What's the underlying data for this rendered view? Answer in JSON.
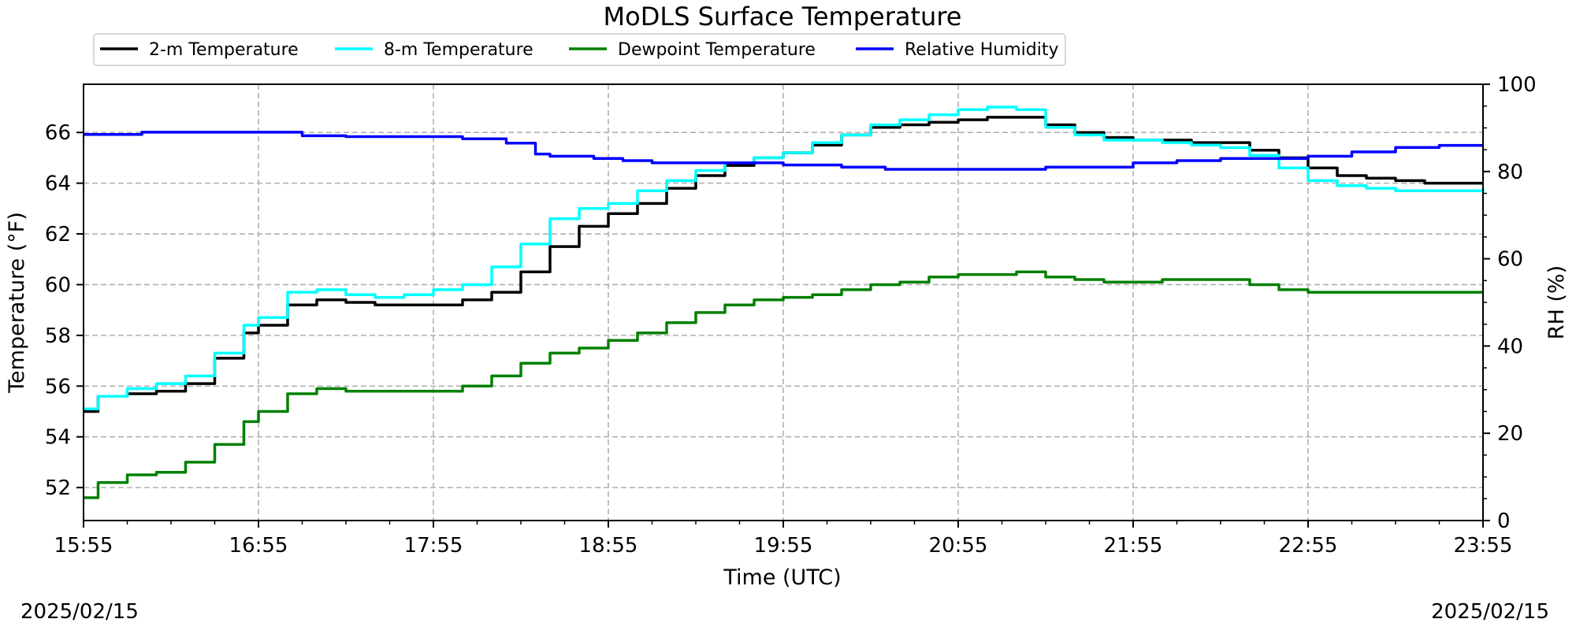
{
  "chart_data": {
    "type": "line",
    "title": "MoDLS Surface Temperature",
    "xlabel": "Time (UTC)",
    "ylabel": "Temperature ($^\\circ$F)",
    "ylabel_display": "Temperature (°F)",
    "y2label": "RH (%)",
    "xticks": [
      "15:55",
      "16:55",
      "17:55",
      "18:55",
      "19:55",
      "20:55",
      "21:55",
      "22:55",
      "23:55"
    ],
    "yticks": [
      52,
      54,
      56,
      58,
      60,
      62,
      64,
      66
    ],
    "y2ticks": [
      0,
      20,
      40,
      60,
      80,
      100
    ],
    "ylim": [
      50.7,
      67.9
    ],
    "y2lim": [
      0,
      100
    ],
    "grid": true,
    "legend_position": "top, above plot",
    "date_left": "2025/02/15",
    "date_right": "2025/02/15",
    "x_unit": "minutes since 15:55",
    "series": [
      {
        "name": "2-m Temperature",
        "axis": "left",
        "color": "#000000",
        "x": [
          0,
          5,
          15,
          25,
          35,
          45,
          55,
          60,
          70,
          80,
          90,
          100,
          110,
          120,
          130,
          140,
          150,
          160,
          170,
          180,
          190,
          200,
          210,
          220,
          230,
          240,
          250,
          260,
          270,
          280,
          290,
          300,
          310,
          320,
          330,
          340,
          350,
          360,
          370,
          380,
          390,
          400,
          410,
          420,
          430,
          440,
          450,
          460,
          480
        ],
        "values": [
          55.0,
          55.6,
          55.7,
          55.8,
          56.1,
          57.1,
          58.1,
          58.4,
          59.2,
          59.4,
          59.3,
          59.2,
          59.2,
          59.2,
          59.4,
          59.7,
          60.5,
          61.5,
          62.3,
          62.8,
          63.2,
          63.8,
          64.3,
          64.7,
          65.0,
          65.2,
          65.5,
          65.9,
          66.2,
          66.3,
          66.4,
          66.5,
          66.6,
          66.6,
          66.3,
          66.0,
          65.8,
          65.7,
          65.7,
          65.6,
          65.6,
          65.3,
          65.0,
          64.6,
          64.3,
          64.2,
          64.1,
          64.0,
          64.0
        ]
      },
      {
        "name": "8-m Temperature",
        "axis": "left",
        "color": "#00ffff",
        "x": [
          0,
          5,
          15,
          25,
          35,
          45,
          55,
          60,
          70,
          80,
          90,
          100,
          110,
          120,
          130,
          140,
          150,
          160,
          170,
          180,
          190,
          200,
          210,
          220,
          230,
          240,
          250,
          260,
          270,
          280,
          290,
          300,
          310,
          320,
          330,
          340,
          350,
          360,
          370,
          380,
          390,
          400,
          410,
          420,
          430,
          440,
          450,
          460,
          480
        ],
        "values": [
          55.1,
          55.6,
          55.9,
          56.1,
          56.4,
          57.3,
          58.4,
          58.7,
          59.7,
          59.8,
          59.6,
          59.5,
          59.6,
          59.8,
          60.0,
          60.7,
          61.6,
          62.6,
          63.0,
          63.2,
          63.7,
          64.1,
          64.5,
          64.8,
          65.0,
          65.2,
          65.6,
          65.9,
          66.3,
          66.5,
          66.7,
          66.9,
          67.0,
          66.9,
          66.2,
          65.9,
          65.7,
          65.7,
          65.6,
          65.5,
          65.4,
          65.1,
          64.6,
          64.1,
          63.9,
          63.8,
          63.7,
          63.7,
          63.8
        ]
      },
      {
        "name": "Dewpoint Temperature",
        "axis": "left",
        "color": "#008000",
        "x": [
          0,
          5,
          15,
          25,
          35,
          45,
          55,
          60,
          70,
          80,
          90,
          100,
          110,
          120,
          130,
          140,
          150,
          160,
          170,
          180,
          190,
          200,
          210,
          220,
          230,
          240,
          250,
          260,
          270,
          280,
          290,
          300,
          310,
          320,
          330,
          340,
          350,
          360,
          370,
          380,
          390,
          400,
          410,
          420,
          430,
          440,
          450,
          460,
          480
        ],
        "values": [
          51.6,
          52.2,
          52.5,
          52.6,
          53.0,
          53.7,
          54.6,
          55.0,
          55.7,
          55.9,
          55.8,
          55.8,
          55.8,
          55.8,
          56.0,
          56.4,
          56.9,
          57.3,
          57.5,
          57.8,
          58.1,
          58.5,
          58.9,
          59.2,
          59.4,
          59.5,
          59.6,
          59.8,
          60.0,
          60.1,
          60.3,
          60.4,
          60.4,
          60.5,
          60.3,
          60.2,
          60.1,
          60.1,
          60.2,
          60.2,
          60.2,
          60.0,
          59.8,
          59.7,
          59.7,
          59.7,
          59.7,
          59.7,
          59.7
        ]
      },
      {
        "name": "Relative Humidity",
        "axis": "right",
        "color": "#0000ff",
        "x": [
          0,
          10,
          20,
          30,
          40,
          55,
          65,
          75,
          90,
          105,
          120,
          130,
          145,
          155,
          160,
          175,
          185,
          195,
          210,
          225,
          240,
          260,
          275,
          290,
          310,
          330,
          345,
          360,
          375,
          390,
          405,
          420,
          435,
          450,
          465,
          480
        ],
        "values": [
          88.5,
          88.5,
          89.0,
          89.0,
          89.0,
          89.0,
          89.0,
          88.2,
          88.0,
          88.0,
          88.0,
          87.5,
          86.5,
          84.0,
          83.5,
          83.0,
          82.5,
          82.0,
          82.0,
          82.0,
          81.5,
          81.0,
          80.5,
          80.5,
          80.5,
          81.0,
          81.0,
          82.0,
          82.5,
          83.0,
          83.0,
          83.5,
          84.5,
          85.5,
          86.0,
          86.0
        ]
      }
    ]
  }
}
